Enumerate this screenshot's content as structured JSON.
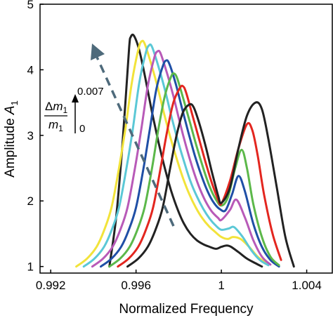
{
  "chart_data": {
    "type": "line",
    "xlabel": "Normalized Frequency",
    "ylabel_main": "Amplitude ",
    "ylabel_italic": "A",
    "ylabel_sub": "1",
    "xlim": [
      0.9915,
      1.0052
    ],
    "ylim": [
      0.9,
      5
    ],
    "xticks": [
      0.992,
      0.996,
      1.0,
      1.004
    ],
    "xtick_labels": [
      "0.992",
      "0.996",
      "1",
      "1.004"
    ],
    "yticks": [
      1,
      2,
      3,
      4,
      5
    ],
    "ytick_labels": [
      "1",
      "2",
      "3",
      "4",
      "5"
    ],
    "grid": false,
    "legend": "none",
    "annotation": {
      "label_delta": "Δ",
      "label_m": "m",
      "label_sub": "1",
      "label_top": "0.007",
      "label_bottom": "0"
    },
    "series": [
      {
        "color": "#222222",
        "x": [
          0.99475,
          0.99505,
          0.9953,
          0.9955,
          0.99568,
          0.99575,
          0.9959,
          0.99615,
          0.99645,
          0.99675,
          0.99705,
          0.99735,
          0.99765,
          0.99795,
          0.99825,
          0.99855,
          0.99885,
          0.99915,
          0.99945,
          0.99975,
          1.0,
          1.00025,
          1.00045,
          1.0008,
          1.0012,
          1.0016,
          1.0019
        ],
        "y": [
          1.0,
          1.7,
          2.6,
          3.5,
          4.35,
          4.5,
          4.52,
          4.3,
          3.85,
          3.35,
          2.9,
          2.5,
          2.15,
          1.87,
          1.65,
          1.5,
          1.4,
          1.34,
          1.3,
          1.27,
          1.3,
          1.32,
          1.3,
          1.22,
          1.12,
          1.05,
          1.0
        ]
      },
      {
        "color": "#f2e33a",
        "x": [
          0.9932,
          0.9937,
          0.99415,
          0.9945,
          0.99485,
          0.9952,
          0.9955,
          0.9958,
          0.9961,
          0.99625,
          0.9964,
          0.9967,
          0.997,
          0.9973,
          0.9976,
          0.9979,
          0.9982,
          0.9985,
          0.9988,
          0.9991,
          0.9994,
          0.9997,
          1.0,
          1.0003,
          1.00055,
          1.0009,
          1.0013,
          1.0017,
          1.0021
        ],
        "y": [
          1.0,
          1.12,
          1.3,
          1.55,
          1.9,
          2.5,
          3.1,
          3.8,
          4.3,
          4.43,
          4.4,
          4.1,
          3.75,
          3.35,
          2.98,
          2.65,
          2.35,
          2.1,
          1.9,
          1.74,
          1.62,
          1.53,
          1.45,
          1.42,
          1.45,
          1.42,
          1.3,
          1.15,
          1.05
        ]
      },
      {
        "color": "#5bc8d6",
        "x": [
          0.99355,
          0.99405,
          0.9945,
          0.99485,
          0.9952,
          0.99555,
          0.99585,
          0.99615,
          0.99645,
          0.9966,
          0.99675,
          0.99705,
          0.99735,
          0.99765,
          0.99795,
          0.99825,
          0.99855,
          0.99885,
          0.99915,
          0.99945,
          0.99975,
          1.0,
          1.00035,
          1.0006,
          1.001,
          1.0014,
          1.0018,
          1.0022
        ],
        "y": [
          1.0,
          1.12,
          1.3,
          1.55,
          1.9,
          2.5,
          3.1,
          3.8,
          4.25,
          4.37,
          4.35,
          4.05,
          3.7,
          3.3,
          2.93,
          2.6,
          2.3,
          2.07,
          1.88,
          1.73,
          1.62,
          1.56,
          1.58,
          1.6,
          1.45,
          1.25,
          1.1,
          1.02
        ]
      },
      {
        "color": "#b85ab8",
        "x": [
          0.99395,
          0.99445,
          0.9949,
          0.99525,
          0.9956,
          0.99595,
          0.99625,
          0.99655,
          0.99685,
          0.997,
          0.99715,
          0.99745,
          0.99775,
          0.99805,
          0.99835,
          0.99865,
          0.99895,
          0.99925,
          0.99955,
          0.99985,
          1.0,
          1.0004,
          1.0007,
          1.0011,
          1.0015,
          1.0019,
          1.0023
        ],
        "y": [
          1.0,
          1.12,
          1.3,
          1.55,
          1.9,
          2.5,
          3.1,
          3.75,
          4.18,
          4.28,
          4.25,
          3.95,
          3.6,
          3.2,
          2.83,
          2.5,
          2.22,
          2.0,
          1.84,
          1.74,
          1.71,
          1.86,
          2.02,
          1.75,
          1.4,
          1.15,
          1.03
        ]
      },
      {
        "color": "#1f4fa6",
        "x": [
          0.99435,
          0.99485,
          0.9953,
          0.99565,
          0.996,
          0.99635,
          0.99665,
          0.99695,
          0.99725,
          0.9974,
          0.99755,
          0.99785,
          0.99815,
          0.99845,
          0.99875,
          0.99905,
          0.99935,
          0.99965,
          0.99995,
          1.0002,
          1.0005,
          1.0008,
          1.0011,
          1.0015,
          1.0019,
          1.0023,
          1.0027
        ],
        "y": [
          1.0,
          1.12,
          1.3,
          1.55,
          1.9,
          2.5,
          3.1,
          3.7,
          4.05,
          4.14,
          4.1,
          3.8,
          3.42,
          3.05,
          2.7,
          2.4,
          2.15,
          1.97,
          1.87,
          1.86,
          2.1,
          2.38,
          2.15,
          1.65,
          1.3,
          1.1,
          1.0
        ]
      },
      {
        "color": "#5cb84a",
        "x": [
          0.99475,
          0.99525,
          0.9957,
          0.99605,
          0.9964,
          0.99675,
          0.99705,
          0.99735,
          0.99765,
          0.9978,
          0.99795,
          0.99825,
          0.99855,
          0.99885,
          0.99915,
          0.99945,
          0.99975,
          1.0,
          1.0003,
          1.00065,
          1.00095,
          1.0012,
          1.0015,
          1.0019,
          1.0023,
          1.0027
        ],
        "y": [
          1.0,
          1.12,
          1.3,
          1.55,
          1.9,
          2.5,
          3.1,
          3.6,
          3.9,
          3.94,
          3.85,
          3.52,
          3.17,
          2.82,
          2.5,
          2.22,
          2.02,
          1.93,
          2.05,
          2.5,
          2.78,
          2.5,
          1.95,
          1.45,
          1.15,
          1.02
        ]
      },
      {
        "color": "#e3261f",
        "x": [
          0.99515,
          0.99565,
          0.9961,
          0.99645,
          0.9968,
          0.99715,
          0.99745,
          0.99775,
          0.99805,
          0.9982,
          0.99835,
          0.99865,
          0.99895,
          0.99925,
          0.99955,
          0.99985,
          1.0,
          1.0004,
          1.0008,
          1.0012,
          1.00145,
          1.0017,
          1.002,
          1.0024,
          1.0028
        ],
        "y": [
          1.0,
          1.12,
          1.3,
          1.55,
          1.9,
          2.5,
          3.05,
          3.5,
          3.72,
          3.75,
          3.65,
          3.3,
          2.95,
          2.6,
          2.28,
          2.02,
          1.96,
          2.3,
          2.8,
          3.17,
          3.08,
          2.7,
          2.1,
          1.5,
          1.1
        ]
      },
      {
        "color": "#222222",
        "x": [
          0.9956,
          0.9961,
          0.99655,
          0.9969,
          0.99725,
          0.9976,
          0.9979,
          0.9982,
          0.9985,
          0.9987,
          0.99895,
          0.99925,
          0.99955,
          0.99985,
          1.0,
          1.0004,
          1.0008,
          1.0012,
          1.0016,
          1.0019,
          1.0022,
          1.0026,
          1.003,
          1.0034
        ],
        "y": [
          1.0,
          1.12,
          1.3,
          1.55,
          1.9,
          2.5,
          3.0,
          3.35,
          3.47,
          3.43,
          3.2,
          2.85,
          2.45,
          2.08,
          1.97,
          2.2,
          2.8,
          3.3,
          3.5,
          3.4,
          2.95,
          2.2,
          1.45,
          1.0
        ]
      }
    ]
  }
}
